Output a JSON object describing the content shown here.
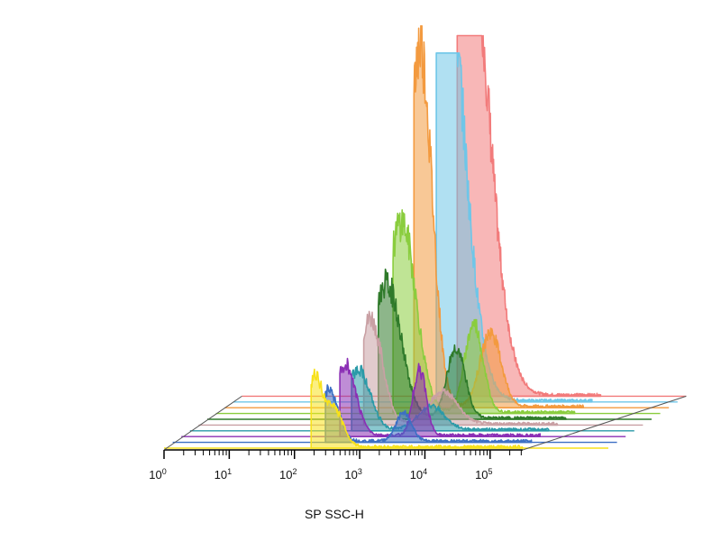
{
  "chart_data": {
    "type": "area",
    "style": "3d-offset-overlay-histograms",
    "xlabel": "SP SSC-H",
    "x_scale": "log",
    "xlim": [
      1,
      316228
    ],
    "x_ticks": [
      {
        "base": "10",
        "exp": "0"
      },
      {
        "base": "10",
        "exp": "1"
      },
      {
        "base": "10",
        "exp": "2"
      },
      {
        "base": "10",
        "exp": "3"
      },
      {
        "base": "10",
        "exp": "4"
      },
      {
        "base": "10",
        "exp": "5"
      }
    ],
    "y_axis_visible": false,
    "grid": false,
    "legend": "none",
    "series": [
      {
        "color": "#f7e11b",
        "peaks": [
          {
            "x": 200,
            "h": 0.28,
            "w": 0.1
          },
          {
            "x": 380,
            "h": 0.18,
            "w": 0.15
          }
        ],
        "cut_x": 180
      },
      {
        "color": "#3c6fc4",
        "peaks": [
          {
            "x": 250,
            "h": 0.22,
            "w": 0.14
          },
          {
            "x": 3500,
            "h": 0.12,
            "w": 0.12
          }
        ],
        "cut_x": 220
      },
      {
        "color": "#8b2fb5",
        "peaks": [
          {
            "x": 330,
            "h": 0.3,
            "w": 0.16
          },
          {
            "x": 4500,
            "h": 0.28,
            "w": 0.1
          }
        ],
        "cut_x": 270
      },
      {
        "color": "#2a9aa8",
        "peaks": [
          {
            "x": 380,
            "h": 0.26,
            "w": 0.18
          },
          {
            "x": 5000,
            "h": 0.1,
            "w": 0.2
          }
        ],
        "cut_x": 300
      },
      {
        "color": "#c9a0a4",
        "peaks": [
          {
            "x": 430,
            "h": 0.45,
            "w": 0.18
          },
          {
            "x": 5500,
            "h": 0.14,
            "w": 0.22
          }
        ],
        "cut_x": 340
      },
      {
        "color": "#2f7a2a",
        "peaks": [
          {
            "x": 560,
            "h": 0.58,
            "w": 0.22
          },
          {
            "x": 6500,
            "h": 0.3,
            "w": 0.14
          }
        ],
        "cut_x": 420
      },
      {
        "color": "#8acd3e",
        "peaks": [
          {
            "x": 700,
            "h": 0.82,
            "w": 0.22
          },
          {
            "x": 9000,
            "h": 0.38,
            "w": 0.14
          }
        ],
        "cut_x": 520
      },
      {
        "color": "#f39a3f",
        "peaks": [
          {
            "x": 1000,
            "h": 1.55,
            "w": 0.18
          },
          {
            "x": 12000,
            "h": 0.32,
            "w": 0.16
          }
        ],
        "cut_x": 800
      },
      {
        "color": "#6fc6e8",
        "peaks": [
          {
            "x": 1500,
            "h": 2.2,
            "w": 0.32
          }
        ],
        "clip": 1.5,
        "cut_x": 1300
      },
      {
        "color": "#f27b7b",
        "peaks": [
          {
            "x": 2500,
            "h": 2.35,
            "w": 0.34
          }
        ],
        "clip": 1.55,
        "cut_x": 2000
      }
    ]
  }
}
